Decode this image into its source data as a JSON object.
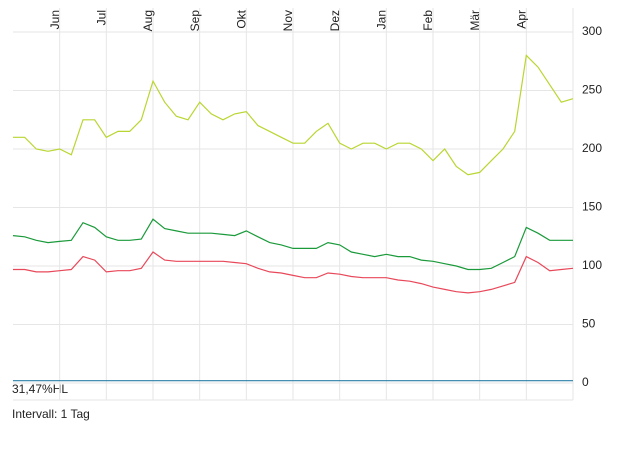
{
  "chart_data": {
    "type": "line",
    "categories": [
      null,
      null,
      null,
      null,
      "Jun",
      null,
      null,
      null,
      "Jul",
      null,
      null,
      null,
      "Aug",
      null,
      null,
      null,
      "Sep",
      null,
      null,
      null,
      "Okt",
      null,
      null,
      null,
      "Nov",
      null,
      null,
      null,
      "Dez",
      null,
      null,
      null,
      "Jan",
      null,
      null,
      null,
      "Feb",
      null,
      null,
      null,
      "Mär",
      null,
      null,
      null,
      "Apr",
      null,
      null,
      null,
      null
    ],
    "series": [
      {
        "color": "#b8d630",
        "values": [
          210,
          210,
          200,
          198,
          200,
          195,
          225,
          225,
          210,
          215,
          215,
          225,
          258,
          240,
          228,
          225,
          240,
          230,
          225,
          230,
          232,
          220,
          215,
          210,
          205,
          205,
          215,
          222,
          205,
          200,
          205,
          205,
          200,
          205,
          205,
          200,
          190,
          200,
          185,
          178,
          180,
          190,
          200,
          215,
          280,
          270,
          255,
          240,
          243
        ]
      },
      {
        "color": "#1a9a3a",
        "values": [
          126,
          125,
          122,
          120,
          121,
          122,
          137,
          133,
          125,
          122,
          122,
          123,
          140,
          132,
          130,
          128,
          128,
          128,
          127,
          126,
          130,
          125,
          120,
          118,
          115,
          115,
          115,
          120,
          118,
          112,
          110,
          108,
          110,
          108,
          108,
          105,
          104,
          102,
          100,
          97,
          97,
          98,
          103,
          108,
          133,
          128,
          122,
          122,
          122
        ]
      },
      {
        "color": "#e8485a",
        "values": [
          97,
          97,
          95,
          95,
          96,
          97,
          108,
          105,
          95,
          96,
          96,
          98,
          112,
          105,
          104,
          104,
          104,
          104,
          104,
          103,
          102,
          98,
          95,
          94,
          92,
          90,
          90,
          94,
          93,
          91,
          90,
          90,
          90,
          88,
          87,
          85,
          82,
          80,
          78,
          77,
          78,
          80,
          83,
          86,
          108,
          103,
          96,
          97,
          98
        ]
      },
      {
        "color": "#2a7fa8",
        "values": [
          2,
          2,
          2,
          2,
          2,
          2,
          2,
          2,
          2,
          2,
          2,
          2,
          2,
          2,
          2,
          2,
          2,
          2,
          2,
          2,
          2,
          2,
          2,
          2,
          2,
          2,
          2,
          2,
          2,
          2,
          2,
          2,
          2,
          2,
          2,
          2,
          2,
          2,
          2,
          2,
          2,
          2,
          2,
          2,
          2,
          2,
          2,
          2,
          2
        ]
      }
    ],
    "ylim": [
      0,
      300
    ],
    "yticks": [
      0,
      50,
      100,
      150,
      200,
      250,
      300
    ],
    "grid": true,
    "annotations": [
      "31,47%HL",
      "Intervall: 1 Tag"
    ]
  }
}
